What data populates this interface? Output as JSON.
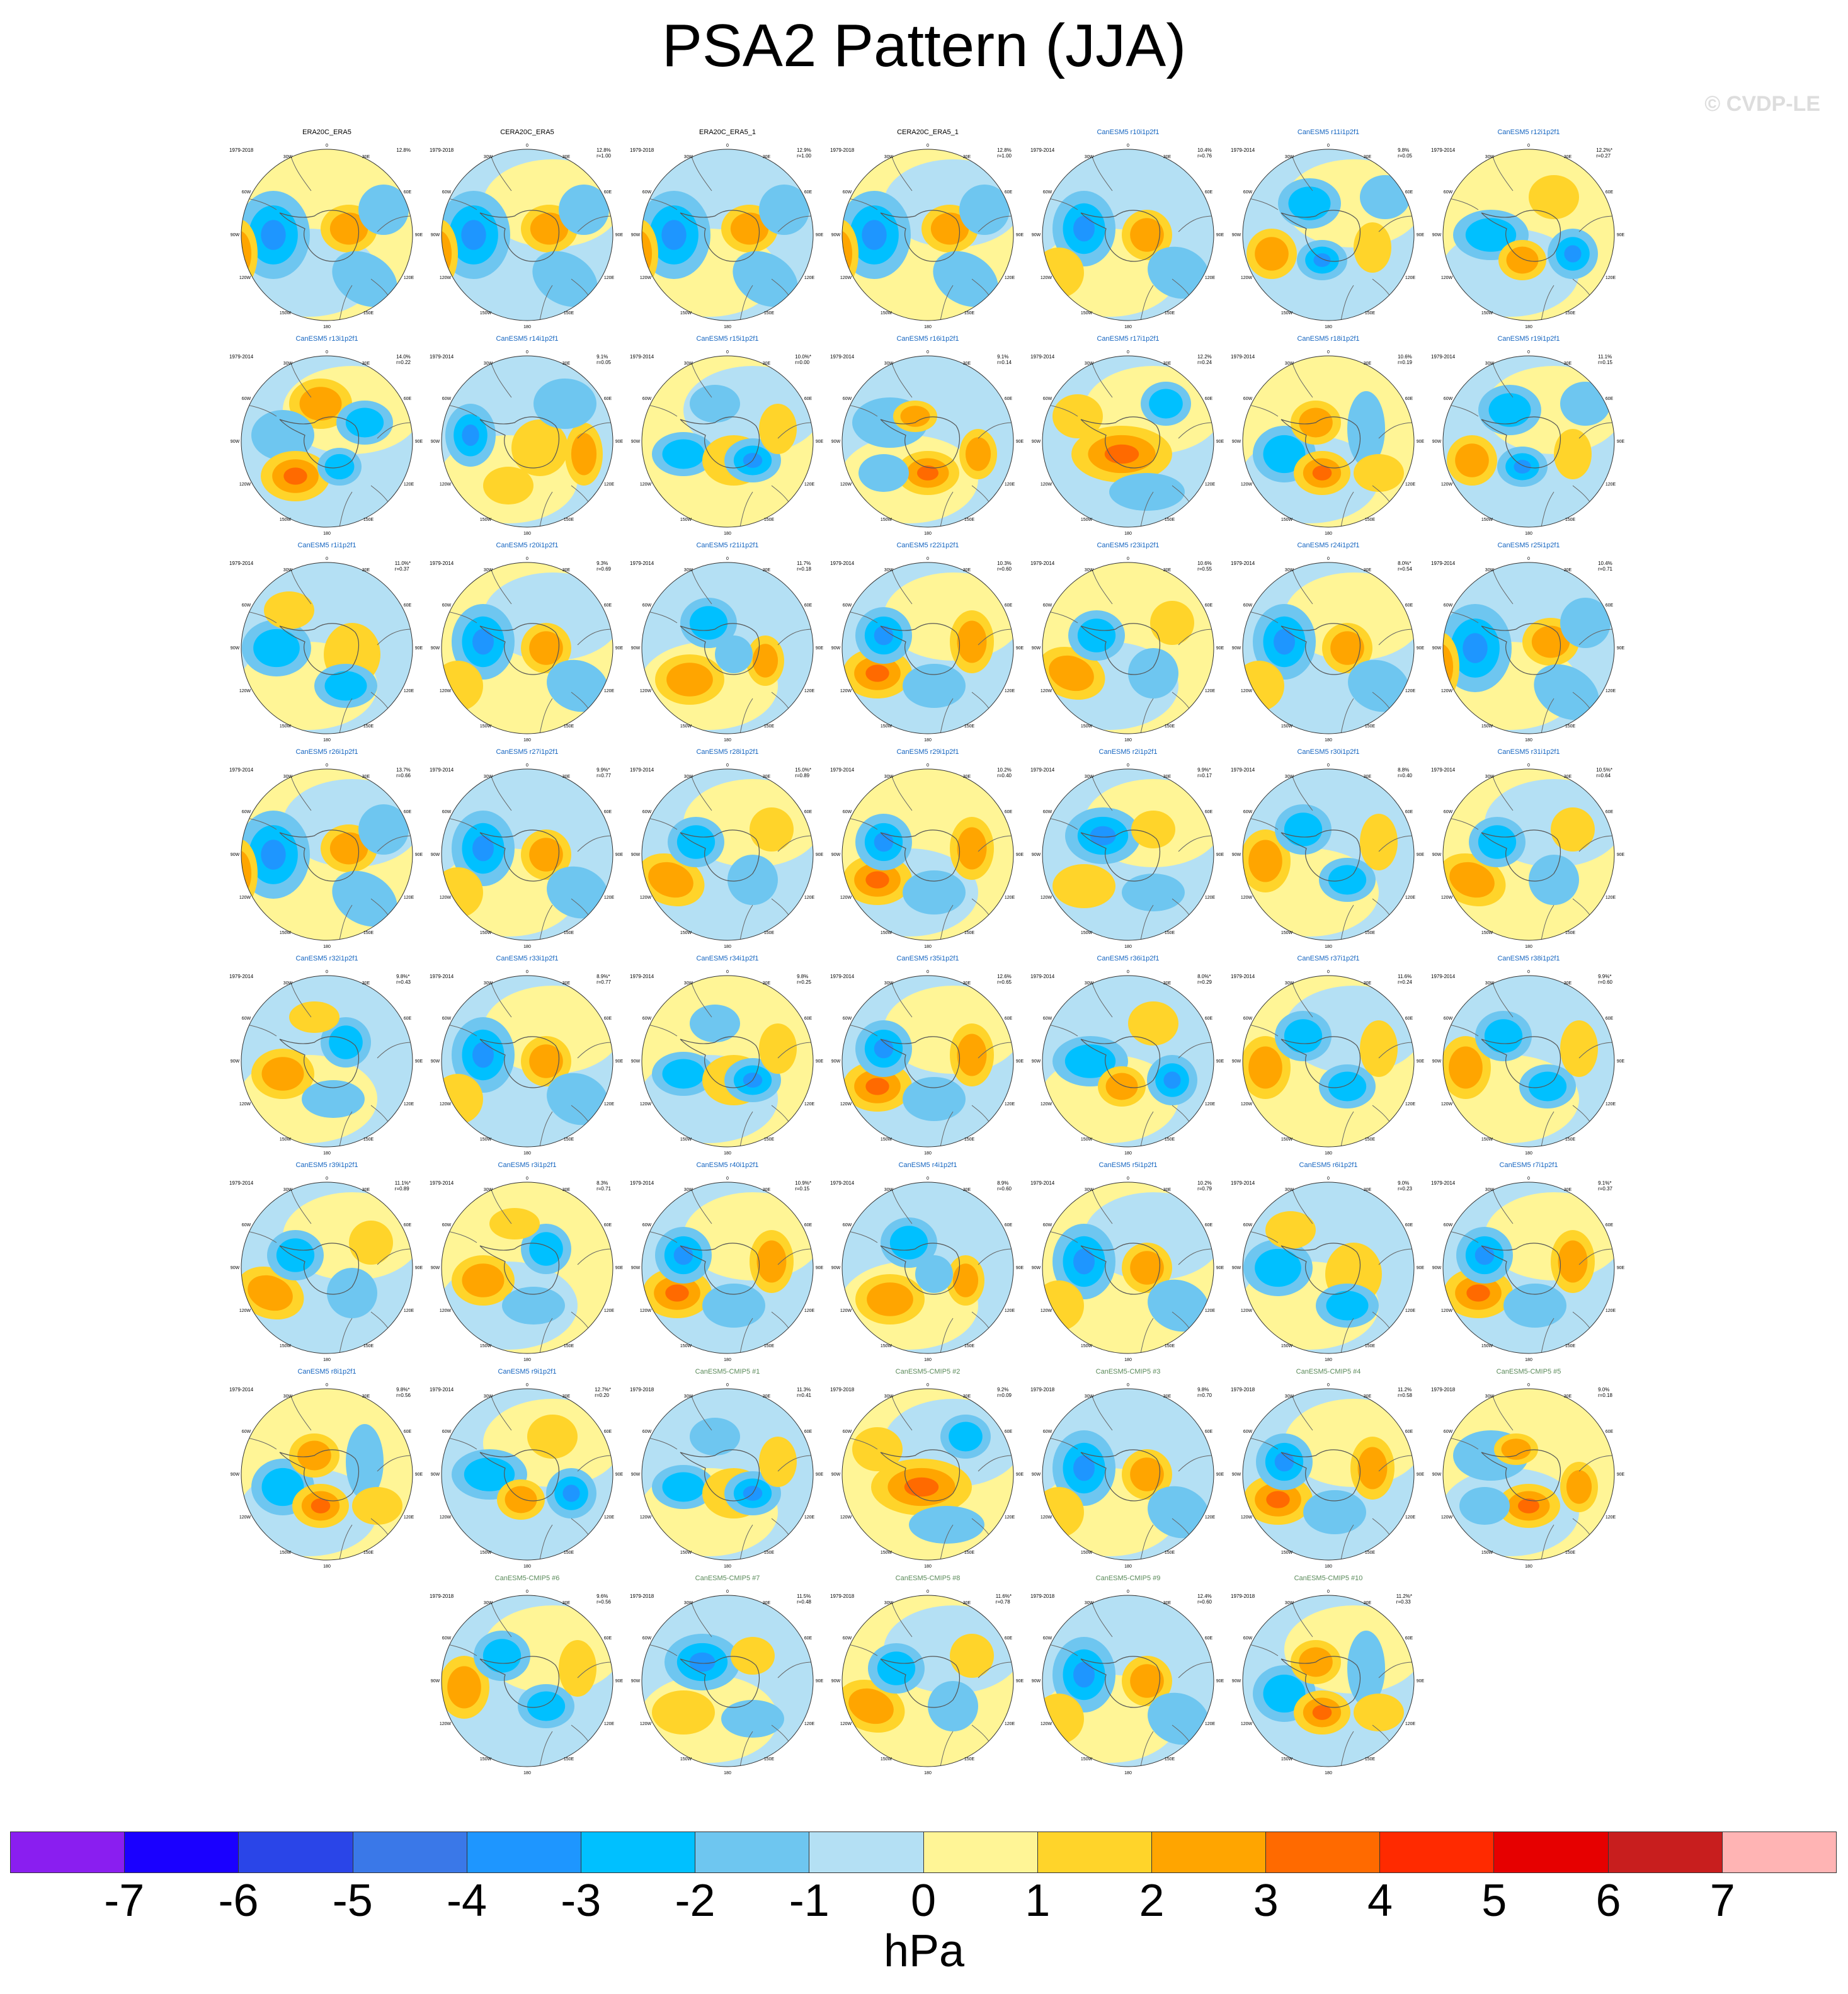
{
  "title": "PSA2 Pattern (JJA)",
  "watermark": "© CVDP-LE",
  "colorbar": {
    "colors": [
      "#8a1ef0",
      "#1a00ff",
      "#2a45e8",
      "#3a78e8",
      "#1e96ff",
      "#00c0ff",
      "#6ec6f0",
      "#b4e0f4",
      "#fff596",
      "#ffd42a",
      "#ffa500",
      "#ff6a00",
      "#ff2a00",
      "#e60000",
      "#c81e1e",
      "#ffb4b4"
    ],
    "ticks": [
      "-7",
      "-6",
      "-5",
      "-4",
      "-3",
      "-2",
      "-1",
      "0",
      "1",
      "2",
      "3",
      "4",
      "5",
      "6",
      "7"
    ],
    "units": "hPa"
  },
  "map_labels": {
    "lon_top": "0",
    "lon_30w": "30W",
    "lon_60w": "60W",
    "lon_90w": "90W",
    "lon_120w": "120W",
    "lon_150w": "150W",
    "lon_180": "180",
    "lon_150e": "150E",
    "lon_120e": "120E",
    "lon_90e": "90E",
    "lon_60e": "60E",
    "lon_30e": "30E"
  },
  "panels": [
    {
      "title": "ERA20C_ERA5",
      "kind": "obs",
      "years": "1979-2018",
      "pct": "12.8%",
      "r": "",
      "pattern": 0
    },
    {
      "title": "CERA20C_ERA5",
      "kind": "obs",
      "years": "1979-2018",
      "pct": "12.8%",
      "r": "r=1.00",
      "pattern": 0
    },
    {
      "title": "ERA20C_ERA5_1",
      "kind": "obs",
      "years": "1979-2018",
      "pct": "12.9%",
      "r": "r=1.00",
      "pattern": 0
    },
    {
      "title": "CERA20C_ERA5_1",
      "kind": "obs",
      "years": "1979-2018",
      "pct": "12.8%",
      "r": "r=1.00",
      "pattern": 0
    },
    {
      "title": "CanESM5 r10i1p2f1",
      "kind": "can",
      "years": "1979-2014",
      "pct": "10.4%",
      "r": "r=0.76",
      "pattern": 1
    },
    {
      "title": "CanESM5 r11i1p2f1",
      "kind": "can",
      "years": "1979-2014",
      "pct": "9.8%",
      "r": "r=0.05",
      "pattern": 2
    },
    {
      "title": "CanESM5 r12i1p2f1",
      "kind": "can",
      "years": "1979-2014",
      "pct": "12.2%*",
      "r": "r=0.27",
      "pattern": 3
    },
    {
      "title": "CanESM5 r13i1p2f1",
      "kind": "can",
      "years": "1979-2014",
      "pct": "14.0%",
      "r": "r=0.22",
      "pattern": 4
    },
    {
      "title": "CanESM5 r14i1p2f1",
      "kind": "can",
      "years": "1979-2014",
      "pct": "9.1%",
      "r": "r=0.05",
      "pattern": 5
    },
    {
      "title": "CanESM5 r15i1p2f1",
      "kind": "can",
      "years": "1979-2014",
      "pct": "10.0%*",
      "r": "r=0.00",
      "pattern": 6
    },
    {
      "title": "CanESM5 r16i1p2f1",
      "kind": "can",
      "years": "1979-2014",
      "pct": "9.1%",
      "r": "r=0.14",
      "pattern": 7
    },
    {
      "title": "CanESM5 r17i1p2f1",
      "kind": "can",
      "years": "1979-2014",
      "pct": "12.2%",
      "r": "r=0.24",
      "pattern": 8
    },
    {
      "title": "CanESM5 r18i1p2f1",
      "kind": "can",
      "years": "1979-2014",
      "pct": "10.6%",
      "r": "r=0.19",
      "pattern": 9
    },
    {
      "title": "CanESM5 r19i1p2f1",
      "kind": "can",
      "years": "1979-2014",
      "pct": "11.1%",
      "r": "r=0.15",
      "pattern": 2
    },
    {
      "title": "CanESM5 r1i1p2f1",
      "kind": "can",
      "years": "1979-2014",
      "pct": "11.0%*",
      "r": "r=0.37",
      "pattern": 10
    },
    {
      "title": "CanESM5 r20i1p2f1",
      "kind": "can",
      "years": "1979-2014",
      "pct": "9.3%",
      "r": "r=0.69",
      "pattern": 1
    },
    {
      "title": "CanESM5 r21i1p2f1",
      "kind": "can",
      "years": "1979-2014",
      "pct": "11.7%",
      "r": "r=0.18",
      "pattern": 11
    },
    {
      "title": "CanESM5 r22i1p2f1",
      "kind": "can",
      "years": "1979-2014",
      "pct": "10.3%",
      "r": "r=0.60",
      "pattern": 12
    },
    {
      "title": "CanESM5 r23i1p2f1",
      "kind": "can",
      "years": "1979-2014",
      "pct": "10.6%",
      "r": "r=0.55",
      "pattern": 13
    },
    {
      "title": "CanESM5 r24i1p2f1",
      "kind": "can",
      "years": "1979-2014",
      "pct": "8.0%*",
      "r": "r=0.54",
      "pattern": 1
    },
    {
      "title": "CanESM5 r25i1p2f1",
      "kind": "can",
      "years": "1979-2014",
      "pct": "10.4%",
      "r": "r=0.71",
      "pattern": 0
    },
    {
      "title": "CanESM5 r26i1p2f1",
      "kind": "can",
      "years": "1979-2014",
      "pct": "13.7%",
      "r": "r=0.66",
      "pattern": 0
    },
    {
      "title": "CanESM5 r27i1p2f1",
      "kind": "can",
      "years": "1979-2014",
      "pct": "9.9%*",
      "r": "r=0.77",
      "pattern": 1
    },
    {
      "title": "CanESM5 r28i1p2f1",
      "kind": "can",
      "years": "1979-2014",
      "pct": "15.0%*",
      "r": "r=0.89",
      "pattern": 13
    },
    {
      "title": "CanESM5 r29i1p2f1",
      "kind": "can",
      "years": "1979-2014",
      "pct": "10.2%",
      "r": "r=0.40",
      "pattern": 12
    },
    {
      "title": "CanESM5 r2i1p2f1",
      "kind": "can",
      "years": "1979-2014",
      "pct": "9.9%*",
      "r": "r=0.17",
      "pattern": 14
    },
    {
      "title": "CanESM5 r30i1p2f1",
      "kind": "can",
      "years": "1979-2014",
      "pct": "8.8%",
      "r": "r=0.40",
      "pattern": 15
    },
    {
      "title": "CanESM5 r31i1p2f1",
      "kind": "can",
      "years": "1979-2014",
      "pct": "10.5%*",
      "r": "r=0.64",
      "pattern": 13
    },
    {
      "title": "CanESM5 r32i1p2f1",
      "kind": "can",
      "years": "1979-2014",
      "pct": "9.8%*",
      "r": "r=0.43",
      "pattern": 16
    },
    {
      "title": "CanESM5 r33i1p2f1",
      "kind": "can",
      "years": "1979-2014",
      "pct": "8.9%*",
      "r": "r=0.77",
      "pattern": 1
    },
    {
      "title": "CanESM5 r34i1p2f1",
      "kind": "can",
      "years": "1979-2014",
      "pct": "9.8%",
      "r": "r=0.25",
      "pattern": 6
    },
    {
      "title": "CanESM5 r35i1p2f1",
      "kind": "can",
      "years": "1979-2014",
      "pct": "12.6%",
      "r": "r=0.65",
      "pattern": 12
    },
    {
      "title": "CanESM5 r36i1p2f1",
      "kind": "can",
      "years": "1979-2014",
      "pct": "8.0%*",
      "r": "r=0.29",
      "pattern": 3
    },
    {
      "title": "CanESM5 r37i1p2f1",
      "kind": "can",
      "years": "1979-2014",
      "pct": "11.6%",
      "r": "r=0.24",
      "pattern": 15
    },
    {
      "title": "CanESM5 r38i1p2f1",
      "kind": "can",
      "years": "1979-2014",
      "pct": "9.9%*",
      "r": "r=0.60",
      "pattern": 15
    },
    {
      "title": "CanESM5 r39i1p2f1",
      "kind": "can",
      "years": "1979-2014",
      "pct": "11.1%*",
      "r": "r=0.89",
      "pattern": 13
    },
    {
      "title": "CanESM5 r3i1p2f1",
      "kind": "can",
      "years": "1979-2014",
      "pct": "8.3%",
      "r": "r=0.71",
      "pattern": 16
    },
    {
      "title": "CanESM5 r40i1p2f1",
      "kind": "can",
      "years": "1979-2014",
      "pct": "10.9%*",
      "r": "r=0.15",
      "pattern": 12
    },
    {
      "title": "CanESM5 r4i1p2f1",
      "kind": "can",
      "years": "1979-2014",
      "pct": "8.9%",
      "r": "r=0.60",
      "pattern": 11
    },
    {
      "title": "CanESM5 r5i1p2f1",
      "kind": "can",
      "years": "1979-2014",
      "pct": "10.2%",
      "r": "r=0.79",
      "pattern": 1
    },
    {
      "title": "CanESM5 r6i1p2f1",
      "kind": "can",
      "years": "1979-2014",
      "pct": "9.0%",
      "r": "r=0.23",
      "pattern": 10
    },
    {
      "title": "CanESM5 r7i1p2f1",
      "kind": "can",
      "years": "1979-2014",
      "pct": "9.1%*",
      "r": "r=0.37",
      "pattern": 12
    },
    {
      "title": "CanESM5 r8i1p2f1",
      "kind": "can",
      "years": "1979-2014",
      "pct": "9.8%*",
      "r": "r=0.56",
      "pattern": 9
    },
    {
      "title": "CanESM5 r9i1p2f1",
      "kind": "can",
      "years": "1979-2014",
      "pct": "12.7%*",
      "r": "r=0.20",
      "pattern": 3
    },
    {
      "title": "CanESM5-CMIP5 #1",
      "kind": "cmip",
      "years": "1979-2018",
      "pct": "11.3%",
      "r": "r=0.41",
      "pattern": 6
    },
    {
      "title": "CanESM5-CMIP5 #2",
      "kind": "cmip",
      "years": "1979-2018",
      "pct": "9.2%",
      "r": "r=0.09",
      "pattern": 8
    },
    {
      "title": "CanESM5-CMIP5 #3",
      "kind": "cmip",
      "years": "1979-2018",
      "pct": "9.8%",
      "r": "r=0.70",
      "pattern": 1
    },
    {
      "title": "CanESM5-CMIP5 #4",
      "kind": "cmip",
      "years": "1979-2018",
      "pct": "11.2%",
      "r": "r=0.58",
      "pattern": 12
    },
    {
      "title": "CanESM5-CMIP5 #5",
      "kind": "cmip",
      "years": "1979-2018",
      "pct": "9.0%",
      "r": "r=0.18",
      "pattern": 7
    },
    {
      "title": "CanESM5-CMIP5 #6",
      "kind": "cmip",
      "years": "1979-2018",
      "pct": "9.6%",
      "r": "r=0.56",
      "pattern": 15
    },
    {
      "title": "CanESM5-CMIP5 #7",
      "kind": "cmip",
      "years": "1979-2018",
      "pct": "11.5%",
      "r": "r=0.48",
      "pattern": 14
    },
    {
      "title": "CanESM5-CMIP5 #8",
      "kind": "cmip",
      "years": "1979-2018",
      "pct": "11.6%*",
      "r": "r=0.78",
      "pattern": 13
    },
    {
      "title": "CanESM5-CMIP5 #9",
      "kind": "cmip",
      "years": "1979-2018",
      "pct": "12.4%",
      "r": "r=0.60",
      "pattern": 1
    },
    {
      "title": "CanESM5-CMIP5 #10",
      "kind": "cmip",
      "years": "1979-2018",
      "pct": "11.2%*",
      "r": "r=0.33",
      "pattern": 9
    }
  ]
}
